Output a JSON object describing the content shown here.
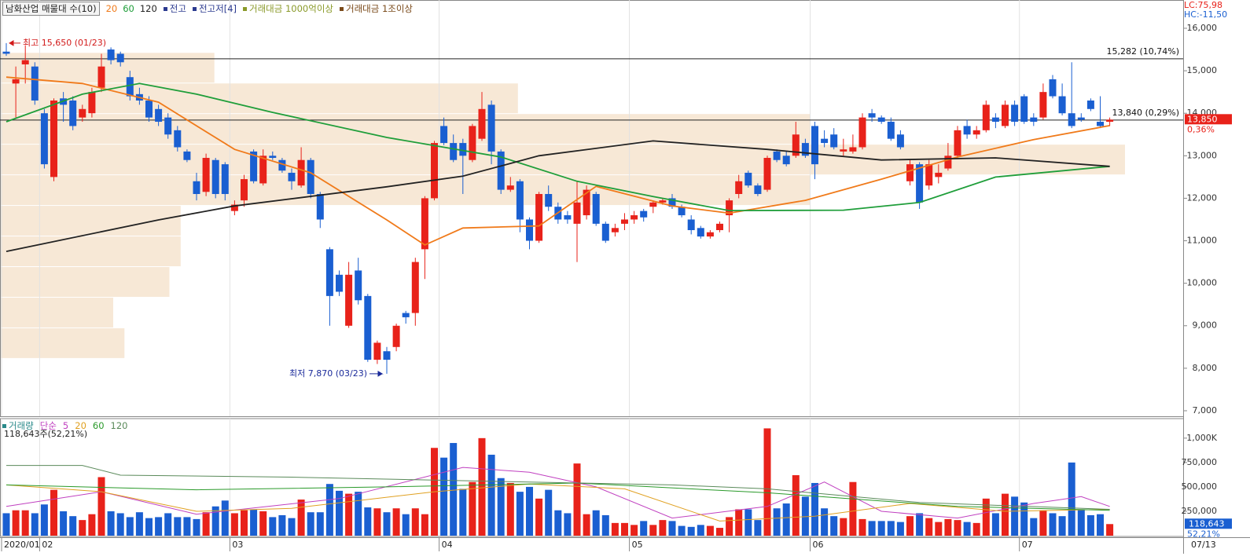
{
  "chart_data": {
    "type": "candlestick",
    "title": "남화산업 매물대 수(10)",
    "categories": [
      "2020/01",
      null,
      null,
      null,
      "02",
      null,
      null,
      null,
      null,
      null,
      null,
      null,
      null,
      null,
      null,
      null,
      null,
      null,
      null,
      null,
      null,
      null,
      null,
      null,
      "03",
      null,
      null,
      null,
      null,
      null,
      null,
      null,
      null,
      null,
      null,
      null,
      null,
      null,
      null,
      null,
      null,
      null,
      null,
      null,
      null,
      null,
      "04",
      null,
      null,
      null,
      null,
      null,
      null,
      null,
      null,
      null,
      null,
      null,
      null,
      null,
      null,
      null,
      null,
      null,
      null,
      null,
      "05",
      null,
      null,
      null,
      null,
      null,
      null,
      null,
      null,
      null,
      null,
      null,
      null,
      null,
      null,
      null,
      null,
      null,
      null,
      "06",
      null,
      null,
      null,
      null,
      null,
      null,
      null,
      null,
      null,
      null,
      null,
      null,
      null,
      null,
      null,
      null,
      null,
      null,
      null,
      null,
      null,
      "07",
      null,
      null,
      null,
      null,
      null,
      null,
      null,
      null,
      null
    ],
    "end_date": "07/13",
    "open": [
      15450,
      14700,
      15150,
      15100,
      14000,
      12500,
      14350,
      14300,
      13900,
      14000,
      14600,
      15500,
      15400,
      14850,
      14450,
      14300,
      14100,
      13900,
      13600,
      13100,
      12400,
      12150,
      12900,
      12800,
      11700,
      11950,
      13100,
      12350,
      13000,
      12900,
      12600,
      12300,
      12900,
      12100,
      10800,
      10200,
      9000,
      10300,
      9700,
      8200,
      8400,
      8500,
      9300,
      9300,
      10800,
      12000,
      13700,
      13300,
      13300,
      12900,
      13400,
      14200,
      13100,
      12200,
      12400,
      11500,
      11000,
      12100,
      11800,
      11600,
      11400,
      11600,
      12100,
      11400,
      11200,
      11400,
      11500,
      11700,
      11800,
      11900,
      12000,
      11800,
      11500,
      11300,
      11100,
      11250,
      11600,
      12100,
      12600,
      12300,
      12200,
      13100,
      13000,
      13000,
      13300,
      13700,
      13400,
      13500,
      13100,
      13100,
      13200,
      14000,
      13900,
      13800,
      13500,
      12400,
      12800,
      12300,
      12500,
      12700,
      13000,
      13700,
      13500,
      13600,
      13900,
      13700,
      14200,
      14400,
      13900,
      13900,
      14800,
      14400,
      14000,
      13900,
      14300,
      13800,
      13800
    ],
    "high": [
      15650,
      15100,
      15600,
      15200,
      14100,
      14350,
      14500,
      14400,
      14200,
      14600,
      15400,
      15550,
      15450,
      15000,
      14600,
      14400,
      14200,
      14000,
      13700,
      13150,
      12600,
      13050,
      12950,
      12850,
      11950,
      12550,
      13150,
      13150,
      13100,
      12950,
      12700,
      13200,
      12950,
      12150,
      10850,
      10300,
      10500,
      10600,
      9750,
      8650,
      8500,
      9050,
      9350,
      10600,
      12050,
      13350,
      13900,
      13500,
      13400,
      13750,
      14500,
      14300,
      13150,
      12500,
      12450,
      11550,
      12150,
      12300,
      11900,
      11700,
      12400,
      12300,
      12150,
      11450,
      11400,
      11650,
      11700,
      11750,
      11950,
      12000,
      12100,
      11850,
      11600,
      11350,
      11250,
      11450,
      12000,
      12550,
      12650,
      12350,
      13000,
      13150,
      13100,
      13800,
      13400,
      13800,
      13600,
      13650,
      13400,
      13500,
      14000,
      14100,
      13950,
      13900,
      13600,
      12900,
      12850,
      12900,
      12800,
      13300,
      13700,
      13850,
      13700,
      14300,
      14000,
      14300,
      14300,
      14450,
      14000,
      14700,
      14900,
      14700,
      15200,
      14000,
      14350,
      14400,
      13900
    ],
    "low": [
      15350,
      13900,
      14700,
      14200,
      12700,
      12400,
      13800,
      13600,
      13800,
      13900,
      14500,
      15150,
      15100,
      14300,
      14200,
      13800,
      13700,
      13400,
      13100,
      12850,
      11950,
      12050,
      12000,
      11950,
      11600,
      11800,
      12350,
      12300,
      12900,
      12600,
      12200,
      12250,
      12000,
      11300,
      9000,
      9700,
      8950,
      9500,
      8150,
      8100,
      7870,
      8400,
      9050,
      9000,
      10100,
      11950,
      13250,
      12850,
      12100,
      12850,
      13350,
      12800,
      12100,
      12150,
      11200,
      10800,
      10950,
      11700,
      11400,
      11400,
      10500,
      11500,
      11350,
      10950,
      11100,
      11250,
      11400,
      11450,
      11650,
      11850,
      11750,
      11550,
      11150,
      11050,
      11050,
      11200,
      11200,
      12000,
      12250,
      12050,
      12150,
      12850,
      12750,
      12950,
      12950,
      12450,
      13200,
      13150,
      13000,
      13050,
      13150,
      13800,
      13750,
      13350,
      13150,
      12300,
      11750,
      12200,
      12350,
      12650,
      12950,
      13400,
      13400,
      13550,
      13650,
      13650,
      13700,
      13750,
      13700,
      13850,
      14350,
      13950,
      13650,
      13800,
      14050,
      13650,
      13700
    ],
    "close": [
      15400,
      14800,
      15250,
      14300,
      12800,
      14300,
      14200,
      13700,
      14100,
      14500,
      15100,
      15250,
      15200,
      14400,
      14300,
      13900,
      13800,
      13500,
      13200,
      12900,
      12100,
      12950,
      12100,
      12100,
      11850,
      12450,
      12400,
      13000,
      12950,
      12650,
      12400,
      12900,
      12100,
      11500,
      9700,
      9800,
      10200,
      9600,
      8200,
      8600,
      8200,
      9000,
      9200,
      10500,
      12000,
      13300,
      13300,
      12900,
      13000,
      13700,
      14100,
      13100,
      12200,
      12300,
      11500,
      11000,
      12100,
      11800,
      11500,
      11500,
      11900,
      12200,
      11400,
      11000,
      11300,
      11500,
      11600,
      11550,
      11900,
      11950,
      11800,
      11600,
      11250,
      11100,
      11200,
      11400,
      11950,
      12400,
      12300,
      12100,
      12950,
      12900,
      12800,
      13500,
      13000,
      12800,
      13300,
      13200,
      13150,
      13200,
      13900,
      13900,
      13800,
      13400,
      13200,
      12800,
      11900,
      12800,
      12600,
      13000,
      13600,
      13500,
      13600,
      14200,
      13800,
      14200,
      13800,
      13800,
      13800,
      14500,
      14400,
      14000,
      13700,
      13850,
      14100,
      13700,
      13850
    ],
    "up_color": "#e8221a",
    "down_color": "#1a5fd1",
    "series": [
      {
        "name": "20",
        "color": "#f07a1a",
        "x": [
          0,
          8,
          16,
          24,
          32,
          40,
          44,
          48,
          56,
          62,
          70,
          76,
          84,
          92,
          100,
          108,
          116
        ],
        "values": [
          14850,
          14700,
          14260,
          13150,
          12600,
          11490,
          10900,
          11300,
          11350,
          12280,
          11820,
          11650,
          11950,
          12450,
          12970,
          13380,
          13710
        ]
      },
      {
        "name": "60",
        "color": "#1f9e3a",
        "x": [
          0,
          8,
          14,
          20,
          28,
          40,
          52,
          60,
          68,
          76,
          88,
          96,
          104,
          116
        ],
        "values": [
          13800,
          14450,
          14700,
          14450,
          14020,
          13430,
          12970,
          12400,
          12040,
          11710,
          11720,
          11900,
          12500,
          12750
        ]
      },
      {
        "name": "120",
        "color": "#222222",
        "x": [
          0,
          16,
          24,
          40,
          48,
          56,
          68,
          80,
          92,
          104,
          116
        ],
        "values": [
          10750,
          11490,
          11820,
          12270,
          12520,
          13000,
          13350,
          13150,
          12900,
          12950,
          12750
        ]
      }
    ],
    "indicators": [
      {
        "name": "전고",
        "color": "#2b3a8f"
      },
      {
        "name": "전고저[4]",
        "color": "#2b3a8f"
      },
      {
        "name": "거래대금 1000억이상",
        "color": "#8a9a2a"
      },
      {
        "name": "거래대금 1조이상",
        "color": "#7a4a1a"
      }
    ],
    "ylim": [
      6870,
      16665
    ],
    "yticks": [
      {
        "value": 7000,
        "label": "7,000"
      },
      {
        "value": 8000,
        "label": "8,000"
      },
      {
        "value": 9000,
        "label": "9,000"
      },
      {
        "value": 10000,
        "label": "10,000"
      },
      {
        "value": 11000,
        "label": "11,000"
      },
      {
        "value": 12000,
        "label": "12,000"
      },
      {
        "value": 13000,
        "label": "13,000"
      },
      {
        "value": 14000,
        "label": "14,000"
      },
      {
        "value": 15000,
        "label": "15,000"
      },
      {
        "value": 16000,
        "label": "16,000"
      }
    ],
    "levels": [
      {
        "value": 15282,
        "label": "15,282 (10,74%)"
      },
      {
        "value": 13840,
        "label": "13,840 (0,29%)"
      }
    ],
    "extremes": [
      {
        "value": 15650,
        "label": "최고 15,650 (01/23)",
        "color": "#d21a1a"
      },
      {
        "value": 7870,
        "label": "최저 7,870 (03/23)",
        "color": "#1a2a9a"
      }
    ],
    "current": {
      "value": 13850,
      "label": "13,850"
    },
    "change": {
      "value": 0.36,
      "label": "0,36%"
    },
    "lc": "LC:75,98",
    "hc": "HC:-11,50",
    "volume_profile": {
      "bins": [
        8240,
        8960,
        9680,
        10400,
        11120,
        11840,
        12560,
        13280,
        14000,
        14720,
        15440
      ],
      "values": [
        11,
        10,
        15,
        16,
        16,
        72,
        100,
        72,
        46,
        19
      ],
      "color": "#f7e8d6"
    },
    "volume": {
      "title": "거래량",
      "prefix": "단순",
      "info": "118,643주(52,21%)",
      "values": [
        230000,
        260000,
        260000,
        230000,
        320000,
        470000,
        250000,
        200000,
        160000,
        220000,
        600000,
        250000,
        230000,
        190000,
        240000,
        180000,
        190000,
        230000,
        190000,
        190000,
        170000,
        240000,
        300000,
        360000,
        230000,
        260000,
        270000,
        250000,
        190000,
        210000,
        180000,
        370000,
        240000,
        240000,
        530000,
        460000,
        430000,
        450000,
        290000,
        280000,
        240000,
        280000,
        220000,
        280000,
        220000,
        900000,
        800000,
        950000,
        480000,
        550000,
        1000000,
        830000,
        590000,
        540000,
        450000,
        500000,
        380000,
        470000,
        260000,
        230000,
        740000,
        220000,
        260000,
        210000,
        130000,
        130000,
        110000,
        150000,
        110000,
        160000,
        150000,
        100000,
        90000,
        110000,
        100000,
        80000,
        190000,
        270000,
        270000,
        160000,
        1100000,
        280000,
        330000,
        620000,
        400000,
        540000,
        280000,
        200000,
        180000,
        550000,
        170000,
        150000,
        150000,
        150000,
        140000,
        200000,
        230000,
        180000,
        140000,
        170000,
        160000,
        140000,
        130000,
        380000,
        230000,
        430000,
        400000,
        340000,
        180000,
        260000,
        230000,
        200000,
        750000,
        270000,
        210000,
        220000,
        118643
      ],
      "last": {
        "value": 118643,
        "label": "118,643"
      },
      "last_pct": "52,21%",
      "ylim": [
        0,
        1200000
      ],
      "yticks": [
        {
          "value": 250000,
          "label": "250,000"
        },
        {
          "value": 500000,
          "label": "500,000"
        },
        {
          "value": 750000,
          "label": "750,000"
        },
        {
          "value": 1000000,
          "label": "1,000K"
        }
      ],
      "series": [
        {
          "name": "5",
          "color": "#c040c0",
          "x": [
            0,
            10,
            20,
            35,
            48,
            55,
            62,
            70,
            80,
            86,
            92,
            100,
            108,
            113,
            116
          ],
          "values": [
            300000,
            450000,
            220000,
            380000,
            700000,
            650000,
            500000,
            180000,
            300000,
            550000,
            250000,
            180000,
            330000,
            400000,
            300000
          ]
        },
        {
          "name": "20",
          "color": "#e0a020",
          "x": [
            0,
            10,
            20,
            30,
            45,
            55,
            65,
            75,
            85,
            95,
            105,
            116
          ],
          "values": [
            520000,
            450000,
            250000,
            280000,
            450000,
            530000,
            480000,
            150000,
            200000,
            330000,
            250000,
            270000
          ]
        },
        {
          "name": "60",
          "color": "#2a9a2a",
          "x": [
            0,
            20,
            40,
            60,
            80,
            100,
            116
          ],
          "values": [
            520000,
            470000,
            500000,
            540000,
            440000,
            300000,
            260000
          ]
        },
        {
          "name": "120",
          "color": "#5a8a5a",
          "x": [
            0,
            8,
            12,
            30,
            50,
            70,
            80,
            96,
            116
          ],
          "values": [
            720000,
            720000,
            620000,
            600000,
            560000,
            520000,
            480000,
            340000,
            270000
          ]
        }
      ]
    }
  }
}
